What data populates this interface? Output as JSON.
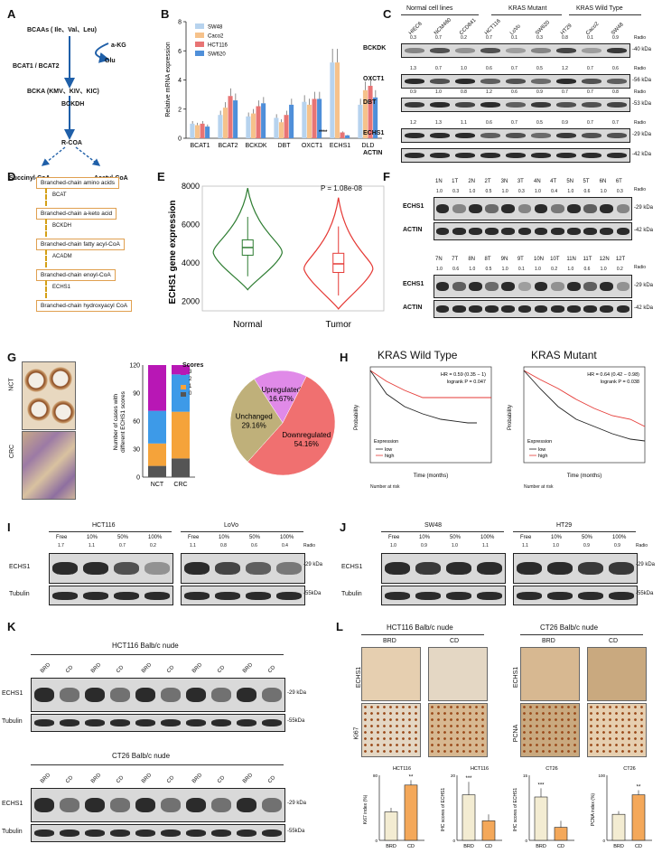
{
  "panels": {
    "A": {
      "label": "A",
      "bcaas": "BCAAs ( Ile、Val、Leu)",
      "bcat": "BCAT1 / BCAT2",
      "akg": "a-KG",
      "glu": "Glu",
      "bcka": "BCKA (KMV、KIV、KIC)",
      "bckdh": "BCKDH",
      "rcoa": "R-COA",
      "succinyl": "Succinyl-CoA",
      "acetyl": "Acetyl-CoA"
    },
    "B": {
      "label": "B",
      "significance": "****"
    },
    "C": {
      "label": "C",
      "groups": [
        "Normal cell lines",
        "KRAS Mutant",
        "KRAS Wild Type"
      ],
      "lanes": [
        "HIEC6",
        "NCM460",
        "CCD841",
        "HCT116",
        "LoVo",
        "SW620",
        "HT29",
        "Caco2",
        "SW48"
      ],
      "radio_label": "Radio",
      "rows": [
        {
          "protein": "BCKDK",
          "kda": "40 kDa",
          "ratios": [
            "0.3",
            "0.7",
            "0.2",
            "0.7",
            "0.1",
            "0.3",
            "0.8",
            "0.1",
            "0.9"
          ]
        },
        {
          "protein": "OXCT1",
          "kda": "56 kDa",
          "ratios": [
            "1.3",
            "0.7",
            "1.0",
            "0.6",
            "0.7",
            "0.5",
            "1.2",
            "0.7",
            "0.6"
          ]
        },
        {
          "protein": "DBT",
          "kda": "53 kDa",
          "ratios": [
            "0.9",
            "1.0",
            "0.8",
            "1.2",
            "0.6",
            "0.9",
            "0.7",
            "0.7",
            "0.8"
          ]
        },
        {
          "protein": "ECHS1",
          "kda": "29 kDa",
          "ratios": [
            "1.2",
            "1.3",
            "1.1",
            "0.6",
            "0.7",
            "0.5",
            "0.9",
            "0.7",
            "0.7"
          ]
        },
        {
          "protein": "ACTIN",
          "kda": "42 kDa",
          "ratios": []
        }
      ]
    },
    "D": {
      "label": "D",
      "steps": [
        "Branched-chain amino acids",
        "Branched-chain a-keto acid",
        "Branched-chain fatty acyl-CoA",
        "Branched-chain enoyl-CoA",
        "Branched-chain hydroxyacyl CoA"
      ],
      "enzymes": [
        "BCAT",
        "BCKDH",
        "ACADM",
        "ECHS1"
      ]
    },
    "E": {
      "label": "E",
      "pvalue": "P = 1.08e-08"
    },
    "F": {
      "label": "F",
      "radio_label": "Radio",
      "lanes_top": [
        "1N",
        "1T",
        "2N",
        "2T",
        "3N",
        "3T",
        "4N",
        "4T",
        "5N",
        "5T",
        "6N",
        "6T"
      ],
      "ratios_top": [
        "1.0",
        "0.3",
        "1.0",
        "0.5",
        "1.0",
        "0.3",
        "1.0",
        "0.4",
        "1.0",
        "0.6",
        "1.0",
        "0.3"
      ],
      "lanes_bottom": [
        "7N",
        "7T",
        "8N",
        "8T",
        "9N",
        "9T",
        "10N",
        "10T",
        "11N",
        "11T",
        "12N",
        "12T"
      ],
      "ratios_bottom": [
        "1.0",
        "0.6",
        "1.0",
        "0.5",
        "1.0",
        "0.1",
        "1.0",
        "0.2",
        "1.0",
        "0.6",
        "1.0",
        "0.2"
      ],
      "row_labels": [
        "ECHS1",
        "ACTIN"
      ],
      "kda_echs1": "29 kDa",
      "kda_actin": "42 kDa"
    },
    "G": {
      "label": "G",
      "tissue_nct": "NCT",
      "tissue_crc": "CRC",
      "ylabel_line1": "Number of cases with",
      "ylabel_line2": "different ECHS1 scores",
      "scores_title": "Scores",
      "score_levels": [
        "3",
        "2",
        "1",
        "0"
      ],
      "categories": [
        "NCT",
        "CRC"
      ]
    },
    "H": {
      "label": "H",
      "titles": [
        "KRAS Wild Type",
        "KRAS Mutant"
      ],
      "hr": [
        "HR = 0.59 (0.35 − 1)",
        "HR = 0.64 (0.42 − 0.98)"
      ],
      "logrank": [
        "logrank P = 0.047",
        "logrank P = 0.038"
      ],
      "ylabel": "Probability",
      "xlabel": "Time (months)",
      "expression": "Expression",
      "low": "low",
      "high": "high",
      "at_risk": "Number at risk"
    },
    "I": {
      "label": "I",
      "cells": [
        "HCT116",
        "LoVo"
      ],
      "conditions": [
        "Free",
        "10%",
        "50%",
        "100%"
      ],
      "ratios_hct116": [
        "1.7",
        "1.1",
        "0.7",
        "0.2"
      ],
      "ratios_lovo": [
        "1.1",
        "0.8",
        "0.6",
        "0.4"
      ],
      "radio_label": "Radio",
      "rows": [
        "ECHS1",
        "Tubulin"
      ],
      "kda": [
        "29 kDa",
        "55kDa"
      ]
    },
    "J": {
      "label": "J",
      "cells": [
        "SW48",
        "HT29"
      ],
      "conditions": [
        "Free",
        "10%",
        "50%",
        "100%"
      ],
      "ratios_sw48": [
        "1.0",
        "0.9",
        "1.0",
        "1.1"
      ],
      "ratios_ht29": [
        "1.1",
        "1.0",
        "0.9",
        "0.9"
      ],
      "radio_label": "Radio",
      "rows": [
        "ECHS1",
        "Tubulin"
      ],
      "kda": [
        "29 kDa",
        "55kDa"
      ]
    },
    "K": {
      "label": "K",
      "titles": [
        "HCT116 Balb/c nude",
        "CT26 Balb/c nude"
      ],
      "lanes": [
        "BRD",
        "CD",
        "BRD",
        "CD",
        "BRD",
        "CD",
        "BRD",
        "CD",
        "BRD",
        "CD"
      ],
      "rows": [
        "ECHS1",
        "Tubulin"
      ],
      "kda": [
        "29 kDa",
        "55kDa"
      ]
    },
    "L": {
      "label": "L",
      "titles": [
        "HCT116 Balb/c nude",
        "CT26 Balb/c nude"
      ],
      "conds": [
        "BRD",
        "CD",
        "BRD",
        "CD"
      ],
      "rows_left": [
        "ECHS1",
        "Ki67"
      ],
      "rows_right": [
        "ECHS1",
        "PCNA"
      ],
      "ylabels": [
        "Ki67 index (%)",
        "IHC scores of ECHS1",
        "PCNA index (%)"
      ],
      "mini_titles": [
        "HCT116",
        "HCT116",
        "CT26",
        "CT26"
      ],
      "sig": [
        "**",
        "***",
        "***",
        "**"
      ]
    }
  },
  "chart_data": [
    {
      "id": "B",
      "type": "bar",
      "title": "",
      "xlabel": "",
      "ylabel": "Relative mRNA expression",
      "ylim": [
        0,
        8
      ],
      "yticks": [
        0,
        2,
        4,
        6,
        8
      ],
      "categories": [
        "BCAT1",
        "BCAT2",
        "BCKDK",
        "DBT",
        "OXCT1",
        "ECHS1",
        "DLD"
      ],
      "series": [
        {
          "name": "SW48",
          "color": "#b7d3ee",
          "values": [
            1.0,
            1.6,
            1.5,
            1.4,
            2.5,
            5.2,
            2.3
          ]
        },
        {
          "name": "Caco2",
          "color": "#f6c28b",
          "values": [
            0.9,
            2.1,
            1.7,
            1.1,
            2.3,
            5.2,
            3.3
          ]
        },
        {
          "name": "HCT116",
          "color": "#e87474",
          "values": [
            1.0,
            2.9,
            2.2,
            1.6,
            2.7,
            0.4,
            3.6
          ]
        },
        {
          "name": "SW620",
          "color": "#4f8fd9",
          "values": [
            0.8,
            2.6,
            2.4,
            2.3,
            2.7,
            0.2,
            2.8
          ]
        }
      ]
    },
    {
      "id": "E",
      "type": "violin",
      "ylabel": "ECHS1 gene expression",
      "ylim": [
        1500,
        8000
      ],
      "yticks": [
        2000,
        4000,
        6000,
        8000
      ],
      "categories": [
        "Normal",
        "Tumor"
      ],
      "colors": [
        "#2e7d32",
        "#e53935"
      ],
      "median": [
        4800,
        3950
      ],
      "q1": [
        4400,
        3500
      ],
      "q3": [
        5200,
        4500
      ],
      "whisker_low": [
        3300,
        2300
      ],
      "whisker_high": [
        6400,
        5900
      ]
    },
    {
      "id": "G-bar",
      "type": "bar",
      "ylabel": "Number of cases with different ECHS1 scores",
      "ylim": [
        0,
        120
      ],
      "yticks": [
        0,
        30,
        60,
        90,
        120
      ],
      "categories": [
        "NCT",
        "CRC"
      ],
      "series": [
        {
          "name": "0",
          "color": "#555555",
          "values": [
            12,
            20
          ]
        },
        {
          "name": "1",
          "color": "#f5a33a",
          "values": [
            24,
            50
          ]
        },
        {
          "name": "2",
          "color": "#3d9ae8",
          "values": [
            35,
            40
          ]
        },
        {
          "name": "3",
          "color": "#b817b5",
          "values": [
            49,
            10
          ]
        }
      ]
    },
    {
      "id": "G-pie",
      "type": "pie",
      "labels": [
        "Downregulated",
        "Unchanged",
        "Upregulated"
      ],
      "values": [
        54.16,
        29.16,
        16.67
      ],
      "display": [
        "54.16%",
        "29.16%",
        "16.67%"
      ],
      "colors": [
        "#f07070",
        "#bfb07a",
        "#e08ae8"
      ]
    },
    {
      "id": "L-bars",
      "type": "bar",
      "groups": [
        {
          "title": "HCT116",
          "ylabel": "Ki67 index (%)",
          "ylim": [
            0,
            80
          ],
          "categories": [
            "BRD",
            "CD"
          ],
          "values": [
            35,
            68
          ],
          "errors": [
            5,
            6
          ],
          "sig": "**"
        },
        {
          "title": "HCT116",
          "ylabel": "IHC scores of ECHS1",
          "ylim": [
            0,
            20
          ],
          "categories": [
            "BRD",
            "CD"
          ],
          "values": [
            14,
            6
          ],
          "errors": [
            4,
            2
          ],
          "sig": "***"
        },
        {
          "title": "CT26",
          "ylabel": "IHC scores of ECHS1",
          "ylim": [
            0,
            15
          ],
          "categories": [
            "BRD",
            "CD"
          ],
          "values": [
            10,
            3
          ],
          "errors": [
            2,
            1.5
          ],
          "sig": "***"
        },
        {
          "title": "CT26",
          "ylabel": "PCNA index (%)",
          "ylim": [
            0,
            100
          ],
          "categories": [
            "BRD",
            "CD"
          ],
          "values": [
            40,
            70
          ],
          "errors": [
            5,
            7
          ],
          "sig": "**"
        }
      ]
    }
  ]
}
